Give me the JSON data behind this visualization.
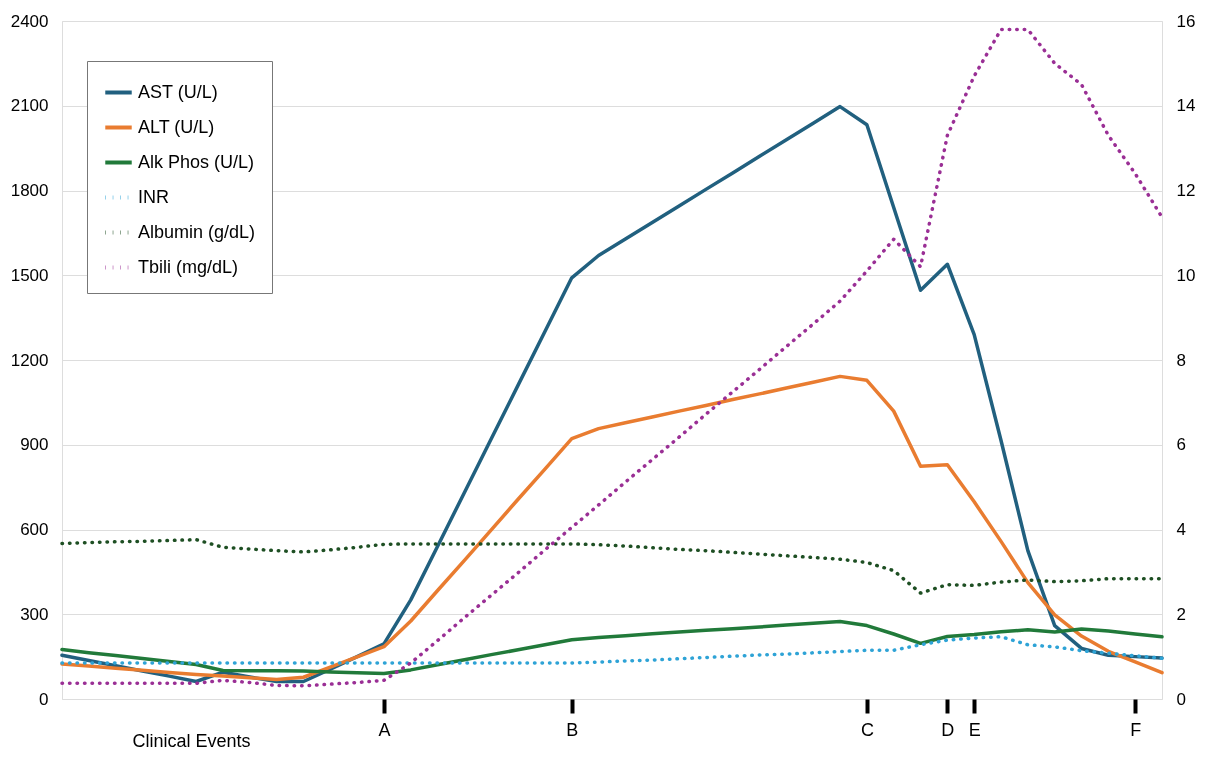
{
  "chart_data": {
    "type": "line",
    "xlabel": "Clinical Events",
    "categories": [
      null,
      null,
      null,
      null,
      null,
      null,
      null,
      null,
      null,
      null,
      null,
      null,
      "A",
      null,
      null,
      null,
      null,
      null,
      null,
      "B",
      null,
      null,
      null,
      null,
      null,
      null,
      null,
      null,
      null,
      null,
      "C",
      null,
      null,
      "D",
      "E",
      null,
      null,
      null,
      null,
      null,
      "F",
      null
    ],
    "ylim": [
      0,
      2400
    ],
    "yticks": [
      0,
      300,
      600,
      900,
      {
        "value": 1200,
        "label": "1200"
      },
      {
        "value": 1500,
        "label": "1500"
      },
      {
        "value": 1800,
        "label": "1800"
      },
      {
        "value": 2100,
        "label": "2100"
      },
      {
        "value": 2400,
        "label": "2400"
      }
    ],
    "y2lim": [
      0,
      16
    ],
    "y2ticks": [
      0,
      2,
      4,
      6,
      8,
      10,
      12,
      14,
      16
    ],
    "grid": "y",
    "legend": "top left",
    "marker": "none",
    "series": [
      {
        "name": "AST (U/L)",
        "color": "#21607f",
        "line_style": "solid",
        "values": [
          155,
          136,
          118,
          99,
          81,
          62,
          95,
          78,
          62,
          62,
          106,
          150,
          195,
          351,
          541,
          731,
          921,
          1111,
          1301,
          1491,
          1570,
          1628,
          1687,
          1745,
          1804,
          1862,
          1921,
          1980,
          2038,
          2097,
          2033,
          1740,
          1447,
          1539,
          1290,
          915,
          525,
          260,
          179,
          155,
          150,
          145
        ]
      },
      {
        "name": "ALT (U/L)",
        "color": "#e97c30",
        "line_style": "solid",
        "values": [
          124,
          117,
          109,
          102,
          94,
          87,
          81,
          75,
          69,
          77,
          113,
          149,
          185,
          276,
          384,
          491,
          599,
          707,
          814,
          922,
          957,
          978,
          998,
          1019,
          1039,
          1060,
          1080,
          1101,
          1121,
          1142,
          1128,
          1019,
          824,
          829,
          698,
          558,
          412,
          298,
          223,
          169,
          131,
          93
        ]
      },
      {
        "name": "Alk Phos (U/L)",
        "color": "#217a3a",
        "line_style": "solid",
        "values": [
          175,
          164,
          154,
          143,
          133,
          122,
          101,
          100,
          100,
          99,
          96,
          93,
          90,
          103,
          121,
          139,
          157,
          174,
          192,
          210,
          218,
          224,
          231,
          237,
          243,
          249,
          255,
          262,
          268,
          274,
          260,
          230,
          197,
          221,
          228,
          238,
          245,
          237,
          248,
          241,
          230,
          220
        ]
      },
      {
        "name": "INR",
        "color": "#2ea3d6",
        "line_style": "dotted",
        "axis": "y2",
        "values": [
          0.85,
          0.85,
          0.85,
          0.85,
          0.85,
          0.85,
          0.85,
          0.85,
          0.85,
          0.85,
          0.85,
          0.85,
          0.85,
          0.85,
          0.85,
          0.85,
          0.85,
          0.85,
          0.85,
          0.85,
          0.87,
          0.9,
          0.92,
          0.95,
          0.98,
          1.01,
          1.04,
          1.06,
          1.09,
          1.12,
          1.15,
          1.15,
          1.28,
          1.39,
          1.44,
          1.47,
          1.28,
          1.23,
          1.14,
          1.08,
          1.02,
          0.96
        ]
      },
      {
        "name": "Albumin (g/dL)",
        "color": "#1e4f23",
        "line_style": "dotted",
        "axis": "y2",
        "values": [
          3.67,
          3.69,
          3.71,
          3.72,
          3.74,
          3.76,
          3.58,
          3.54,
          3.5,
          3.47,
          3.52,
          3.58,
          3.65,
          3.66,
          3.66,
          3.66,
          3.66,
          3.66,
          3.66,
          3.66,
          3.64,
          3.61,
          3.57,
          3.53,
          3.5,
          3.46,
          3.42,
          3.38,
          3.34,
          3.3,
          3.22,
          3.03,
          2.5,
          2.7,
          2.68,
          2.76,
          2.81,
          2.77,
          2.79,
          2.84,
          2.84,
          2.84
        ]
      },
      {
        "name": "Tbili (mg/dL)",
        "color": "#9a2f95",
        "line_style": "dotted",
        "axis": "y2",
        "values": [
          0.37,
          0.37,
          0.37,
          0.37,
          0.37,
          0.37,
          0.44,
          0.39,
          0.32,
          0.31,
          0.35,
          0.39,
          0.44,
          0.85,
          1.38,
          1.92,
          2.45,
          2.98,
          3.52,
          4.05,
          4.58,
          5.12,
          5.65,
          6.18,
          6.72,
          7.25,
          7.78,
          8.32,
          8.85,
          9.39,
          10.1,
          10.85,
          10.2,
          13.3,
          14.7,
          15.8,
          15.8,
          15.0,
          14.5,
          13.3,
          12.4,
          11.37
        ]
      }
    ]
  }
}
